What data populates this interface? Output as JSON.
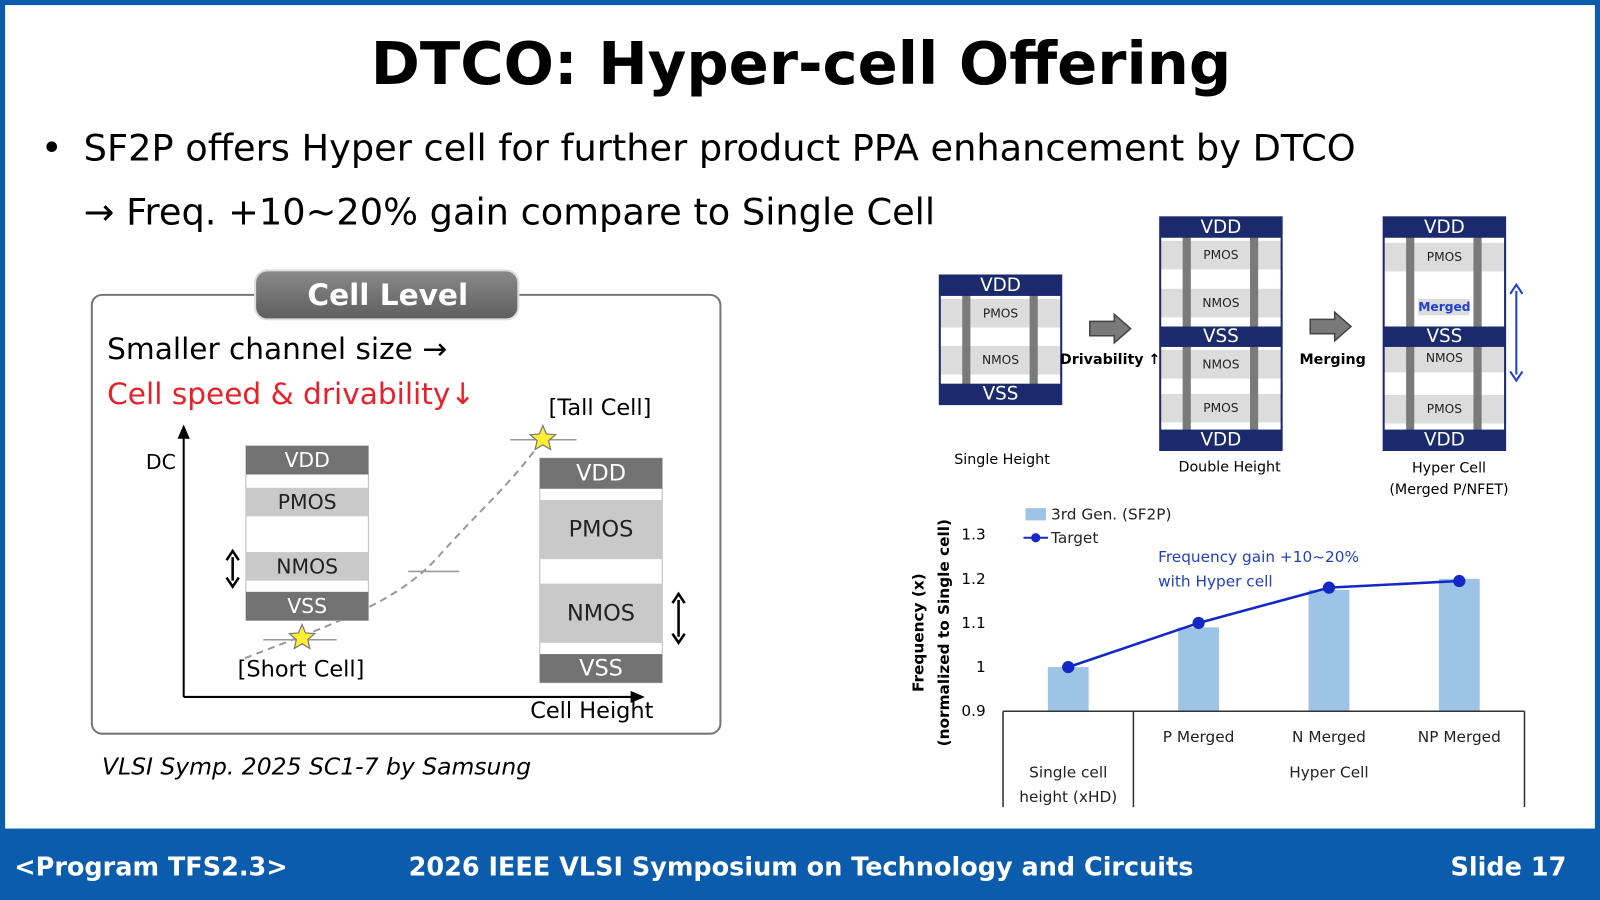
{
  "slide": {
    "title": "DTCO: Hyper-cell Offering",
    "bullet_marker": "•",
    "bullet": "SF2P offers Hyper cell for further product PPA enhancement by DTCO",
    "sub_bullet": "→ Freq. +10~20% gain compare to Single Cell",
    "citation": "VLSI Symp. 2025 SC1-7 by Samsung",
    "footer": {
      "left": "<Program TFS2.3>",
      "center": "2026 IEEE VLSI Symposium on Technology and Circuits",
      "right": "Slide 17"
    }
  },
  "cell_level": {
    "tab": "Cell Level",
    "line1": "Smaller channel size →",
    "line2": "Cell speed & drivability↓",
    "y_axis": "DC",
    "x_axis": "Cell Height",
    "short_cell": {
      "label": "[Short Cell]",
      "rows": [
        "VDD",
        "PMOS",
        "NMOS",
        "VSS"
      ]
    },
    "tall_cell": {
      "label": "[Tall Cell]",
      "rows": [
        "VDD",
        "PMOS",
        "NMOS",
        "VSS"
      ]
    }
  },
  "cell_heights": {
    "single": {
      "label": "Single Height",
      "rows": [
        "VDD",
        "PMOS",
        "NMOS",
        "VSS"
      ]
    },
    "arrow1": "Drivability ↑",
    "double": {
      "label": "Double Height",
      "rows": [
        "VDD",
        "PMOS",
        "NMOS",
        "VSS",
        "NMOS",
        "PMOS",
        "VDD"
      ]
    },
    "arrow2": "Merging",
    "hyper": {
      "label": "Hyper Cell",
      "sublabel": "(Merged P/NFET)",
      "rows": [
        "VDD",
        "PMOS",
        "Merged",
        "VSS",
        "NMOS",
        "PMOS",
        "VDD"
      ]
    }
  },
  "chart_data": {
    "type": "combo",
    "y_label": "Frequency (x)",
    "y_sublabel": "(normalized to Single cell)",
    "categories": [
      "Single cell height (xHD)",
      "P Merged",
      "N Merged",
      "NP Merged"
    ],
    "group_label": "Hyper Cell",
    "series": [
      {
        "name": "3rd Gen. (SF2P)",
        "type": "bar",
        "color": "#9dc3e6",
        "values": [
          1,
          1.09,
          1.175,
          1.2
        ]
      },
      {
        "name": "Target",
        "type": "line",
        "color": "#1428c8",
        "values": [
          1,
          1.1,
          1.18,
          1.195
        ]
      }
    ],
    "ylim": [
      0.9,
      1.3
    ],
    "yticks": [
      0.9,
      1,
      1.1,
      1.2,
      1.3
    ],
    "annotation_lines": [
      "Frequency gain +10~20%",
      "with Hyper cell"
    ],
    "annotation_color": "#1f3fc0",
    "legend": "top-left"
  }
}
